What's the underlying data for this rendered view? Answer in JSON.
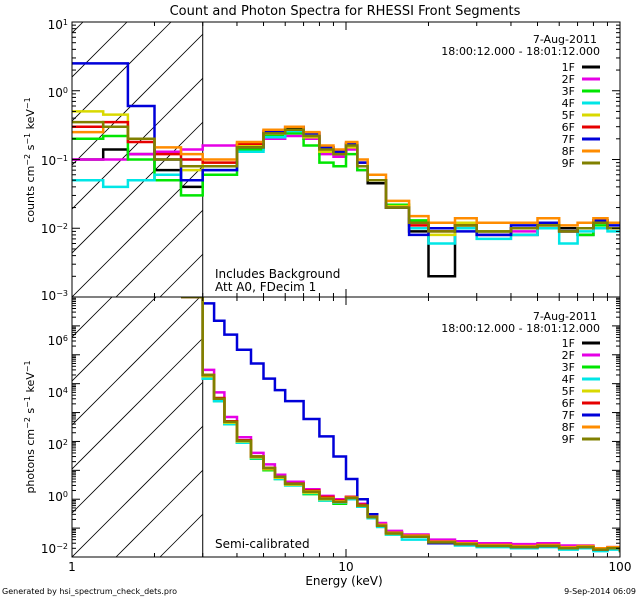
{
  "title": "Count and Photon Spectra for RHESSI Front Segments",
  "footer_left": "Generated by hsi_spectrum_check_dets.pro",
  "footer_right": "9-Sep-2014 06:09",
  "xlabel": "Energy (keV)",
  "x_ticks": [
    "1",
    "10",
    "100"
  ],
  "colors": {
    "1F": "#000000",
    "2F": "#e600e6",
    "3F": "#00e600",
    "4F": "#00e6e6",
    "5F": "#d9d900",
    "6F": "#e60000",
    "7F": "#0000d9",
    "8F": "#ff8c00",
    "9F": "#808000"
  },
  "panels": {
    "top": {
      "ylabel_parts": [
        "counts cm",
        "−2",
        " s",
        "−1",
        " keV",
        "−1"
      ],
      "y_ticks": [
        {
          "base": "10",
          "exp": "1"
        },
        {
          "base": "10",
          "exp": "0"
        },
        {
          "base": "10",
          "exp": "−1"
        },
        {
          "base": "10",
          "exp": "−2"
        },
        {
          "base": "10",
          "exp": "−3"
        }
      ],
      "date": "7-Aug-2011",
      "time_range": "18:00:12.000 - 18:01:12.000",
      "note_line1": "Includes Background",
      "note_line2": "Att A0, FDecim 1"
    },
    "bottom": {
      "ylabel_parts": [
        "photons cm",
        "−2",
        " s",
        "−1",
        " keV",
        "−1"
      ],
      "y_ticks": [
        {
          "base": "10",
          "exp": "6"
        },
        {
          "base": "10",
          "exp": "4"
        },
        {
          "base": "10",
          "exp": "2"
        },
        {
          "base": "10",
          "exp": "0"
        },
        {
          "base": "10",
          "exp": "−2"
        }
      ],
      "date": "7-Aug-2011",
      "time_range": "18:00:12.000 - 18:01:12.000",
      "note_line1": "Semi-calibrated"
    }
  },
  "legend": [
    "1F",
    "2F",
    "3F",
    "4F",
    "5F",
    "6F",
    "7F",
    "8F",
    "9F"
  ],
  "chart_data": [
    {
      "type": "line",
      "panel": "top",
      "title": "Count and Photon Spectra for RHESSI Front Segments",
      "xlabel": "Energy (keV)",
      "ylabel": "counts cm^-2 s^-1 keV^-1",
      "xscale": "log",
      "yscale": "log",
      "xlim": [
        1,
        100
      ],
      "ylim": [
        0.001,
        10
      ],
      "shaded_region_x": [
        1,
        3
      ],
      "x": [
        1.0,
        1.3,
        1.6,
        2.0,
        2.5,
        3.0,
        4.0,
        5.0,
        6.0,
        7.0,
        8.0,
        9.0,
        10.0,
        11.0,
        12.0,
        14.0,
        17.0,
        20.0,
        25.0,
        30.0,
        40.0,
        50.0,
        60.0,
        70.0,
        80.0,
        90.0
      ],
      "series": [
        {
          "name": "1F",
          "values": [
            0.1,
            0.14,
            0.12,
            0.07,
            0.04,
            0.08,
            0.15,
            0.24,
            0.28,
            0.2,
            0.13,
            0.12,
            0.15,
            0.08,
            0.045,
            0.02,
            0.009,
            0.002,
            0.012,
            0.009,
            0.008,
            0.012,
            0.01,
            0.008,
            0.013,
            0.01
          ]
        },
        {
          "name": "2F",
          "values": [
            0.1,
            0.1,
            0.12,
            0.13,
            0.14,
            0.16,
            0.15,
            0.2,
            0.22,
            0.2,
            0.12,
            0.11,
            0.14,
            0.07,
            0.05,
            0.02,
            0.012,
            0.01,
            0.01,
            0.008,
            0.009,
            0.011,
            0.009,
            0.01,
            0.012,
            0.01
          ]
        },
        {
          "name": "3F",
          "values": [
            0.2,
            0.22,
            0.1,
            0.05,
            0.03,
            0.06,
            0.14,
            0.22,
            0.24,
            0.16,
            0.09,
            0.08,
            0.12,
            0.07,
            0.05,
            0.022,
            0.013,
            0.01,
            0.011,
            0.009,
            0.01,
            0.01,
            0.009,
            0.008,
            0.011,
            0.01
          ]
        },
        {
          "name": "4F",
          "values": [
            0.05,
            0.04,
            0.05,
            0.06,
            0.05,
            0.07,
            0.13,
            0.21,
            0.26,
            0.22,
            0.14,
            0.12,
            0.16,
            0.08,
            0.05,
            0.02,
            0.01,
            0.006,
            0.01,
            0.007,
            0.008,
            0.01,
            0.006,
            0.009,
            0.01,
            0.009
          ]
        },
        {
          "name": "5F",
          "values": [
            0.5,
            0.45,
            0.2,
            0.1,
            0.07,
            0.09,
            0.16,
            0.24,
            0.27,
            0.21,
            0.13,
            0.12,
            0.15,
            0.08,
            0.05,
            0.021,
            0.012,
            0.008,
            0.012,
            0.009,
            0.01,
            0.011,
            0.009,
            0.01,
            0.012,
            0.01
          ]
        },
        {
          "name": "6F",
          "values": [
            0.3,
            0.35,
            0.18,
            0.12,
            0.1,
            0.09,
            0.17,
            0.26,
            0.3,
            0.24,
            0.15,
            0.13,
            0.17,
            0.09,
            0.05,
            0.02,
            0.011,
            0.009,
            0.011,
            0.008,
            0.01,
            0.012,
            0.009,
            0.01,
            0.012,
            0.01
          ]
        },
        {
          "name": "7F",
          "values": [
            2.5,
            2.5,
            0.6,
            0.1,
            0.05,
            0.07,
            0.15,
            0.25,
            0.3,
            0.24,
            0.15,
            0.13,
            0.17,
            0.09,
            0.05,
            0.02,
            0.008,
            0.01,
            0.009,
            0.008,
            0.011,
            0.012,
            0.009,
            0.01,
            0.013,
            0.011
          ]
        },
        {
          "name": "8F",
          "values": [
            0.25,
            0.3,
            0.2,
            0.15,
            0.12,
            0.1,
            0.18,
            0.27,
            0.3,
            0.25,
            0.16,
            0.14,
            0.18,
            0.1,
            0.06,
            0.025,
            0.015,
            0.012,
            0.014,
            0.012,
            0.012,
            0.014,
            0.011,
            0.012,
            0.014,
            0.012
          ]
        },
        {
          "name": "9F",
          "values": [
            0.35,
            0.3,
            0.2,
            0.1,
            0.08,
            0.08,
            0.15,
            0.24,
            0.27,
            0.22,
            0.14,
            0.12,
            0.16,
            0.08,
            0.05,
            0.02,
            0.012,
            0.009,
            0.011,
            0.009,
            0.01,
            0.011,
            0.009,
            0.01,
            0.012,
            0.01
          ]
        }
      ],
      "annotations": [
        "7-Aug-2011",
        "18:00:12.000 - 18:01:12.000",
        "Includes Background",
        "Att A0, FDecim 1"
      ],
      "legend_position": "right"
    },
    {
      "type": "line",
      "panel": "bottom",
      "xlabel": "Energy (keV)",
      "ylabel": "photons cm^-2 s^-1 keV^-1",
      "xscale": "log",
      "yscale": "log",
      "xlim": [
        1,
        100
      ],
      "ylim": [
        0.01,
        10000000
      ],
      "shaded_region_x": [
        1,
        3
      ],
      "x": [
        2.5,
        3.0,
        3.3,
        3.6,
        4.0,
        4.5,
        5.0,
        5.5,
        6.0,
        7.0,
        8.0,
        9.0,
        10.0,
        11.0,
        12.0,
        13.0,
        14.0,
        16.0,
        20.0,
        25.0,
        30.0,
        40.0,
        50.0,
        60.0,
        70.0,
        80.0,
        90.0,
        100.0
      ],
      "series": [
        {
          "name": "1F",
          "values": [
            10000000.0,
            20000.0,
            3000.0,
            500.0,
            100.0,
            30.0,
            12.0,
            6.0,
            3.5,
            1.8,
            1.0,
            0.8,
            1.1,
            0.6,
            0.25,
            0.12,
            0.07,
            0.05,
            0.03,
            0.03,
            0.025,
            0.022,
            0.025,
            0.02,
            0.022,
            0.018,
            0.02,
            0.015
          ]
        },
        {
          "name": "2F",
          "values": [
            10000000.0,
            30000.0,
            5000.0,
            700.0,
            140.0,
            40.0,
            16.0,
            7.0,
            4.0,
            2.2,
            1.3,
            1.0,
            1.2,
            0.7,
            0.3,
            0.15,
            0.08,
            0.06,
            0.04,
            0.035,
            0.03,
            0.028,
            0.03,
            0.025,
            0.025,
            0.02,
            0.022,
            0.018
          ]
        },
        {
          "name": "3F",
          "values": [
            10000000.0,
            15000.0,
            2500.0,
            400.0,
            90.0,
            25.0,
            10.0,
            5.0,
            3.0,
            1.5,
            0.9,
            0.7,
            1.0,
            0.55,
            0.22,
            0.11,
            0.06,
            0.05,
            0.03,
            0.028,
            0.024,
            0.022,
            0.024,
            0.02,
            0.021,
            0.018,
            0.02,
            0.016
          ]
        },
        {
          "name": "4F",
          "values": [
            10000000.0,
            15000.0,
            2500.0,
            400.0,
            90.0,
            26.0,
            11.0,
            5.0,
            3.0,
            1.6,
            0.9,
            0.75,
            1.0,
            0.55,
            0.22,
            0.11,
            0.06,
            0.04,
            0.03,
            0.025,
            0.022,
            0.02,
            0.022,
            0.018,
            0.02,
            0.016,
            0.018,
            0.014
          ]
        },
        {
          "name": "5F",
          "values": [
            10000000.0,
            18000.0,
            3000.0,
            450.0,
            100.0,
            28.0,
            11.0,
            5.5,
            3.2,
            1.7,
            1.0,
            0.8,
            1.1,
            0.6,
            0.24,
            0.12,
            0.065,
            0.05,
            0.032,
            0.028,
            0.025,
            0.022,
            0.025,
            0.02,
            0.022,
            0.018,
            0.02,
            0.015
          ]
        },
        {
          "name": "6F",
          "values": [
            10000000.0,
            20000.0,
            3200.0,
            500.0,
            110.0,
            30.0,
            12.0,
            6.0,
            3.5,
            2.0,
            1.2,
            0.9,
            1.2,
            0.65,
            0.26,
            0.13,
            0.07,
            0.055,
            0.034,
            0.03,
            0.026,
            0.023,
            0.026,
            0.021,
            0.023,
            0.019,
            0.021,
            0.016
          ]
        },
        {
          "name": "7F",
          "values": [
            10000000.0,
            6000000.0,
            1500000.0,
            500000.0,
            150000.0,
            50000.0,
            15000.0,
            6000.0,
            2500.0,
            600.0,
            150.0,
            30.0,
            5.0,
            1.0,
            0.3,
            0.12,
            0.07,
            0.05,
            0.03,
            0.028,
            0.025,
            0.022,
            0.024,
            0.02,
            0.022,
            0.018,
            0.02,
            0.016
          ]
        },
        {
          "name": "8F",
          "values": [
            10000000.0,
            20000.0,
            3000.0,
            480.0,
            105.0,
            30.0,
            12.0,
            6.0,
            3.4,
            1.9,
            1.1,
            0.85,
            1.15,
            0.6,
            0.25,
            0.13,
            0.07,
            0.055,
            0.034,
            0.03,
            0.026,
            0.024,
            0.026,
            0.022,
            0.024,
            0.02,
            0.022,
            0.017
          ]
        },
        {
          "name": "9F",
          "values": [
            10000000.0,
            20000.0,
            3000.0,
            480.0,
            105.0,
            30.0,
            12.0,
            6.0,
            3.4,
            1.8,
            1.05,
            0.8,
            1.1,
            0.6,
            0.24,
            0.12,
            0.065,
            0.05,
            0.032,
            0.028,
            0.024,
            0.022,
            0.024,
            0.02,
            0.022,
            0.018,
            0.02,
            0.015
          ]
        }
      ],
      "annotations": [
        "7-Aug-2011",
        "18:00:12.000 - 18:01:12.000",
        "Semi-calibrated"
      ],
      "legend_position": "right"
    }
  ]
}
